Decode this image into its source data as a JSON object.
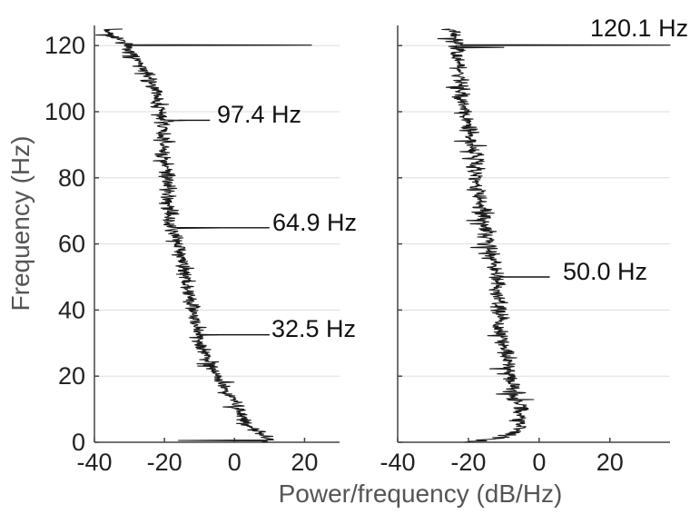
{
  "chart_data": {
    "type": "line",
    "orientation": "horizontal-psd",
    "ylabel": "Frequency (Hz)",
    "xlabel": "Power/frequency (dB/Hz)",
    "grid": true,
    "colors": {
      "trace": "#1a1a1a",
      "grid": "#dddddd",
      "axis": "#444444"
    },
    "panels": [
      {
        "name": "left",
        "xlim": [
          -40,
          30
        ],
        "ylim": [
          0,
          125
        ],
        "xticks": [
          "-40",
          "-20",
          "0",
          "20"
        ],
        "yticks": [
          "0",
          "20",
          "40",
          "60",
          "80",
          "100",
          "120"
        ],
        "trend": {
          "frequency": [
            0,
            1,
            2,
            5,
            10,
            15,
            20,
            25,
            30,
            35,
            40,
            45,
            50,
            55,
            60,
            65,
            70,
            75,
            80,
            85,
            90,
            95,
            100,
            105,
            110,
            115,
            118,
            120,
            122,
            124,
            125
          ],
          "power": [
            8,
            10,
            9,
            4,
            1,
            -2,
            -5,
            -8,
            -10,
            -11,
            -12,
            -13,
            -14,
            -15,
            -16,
            -18,
            -19,
            -19,
            -19,
            -20,
            -20,
            -20,
            -21,
            -22,
            -24,
            -27,
            -30,
            -31,
            -33,
            -36,
            -37
          ]
        },
        "noise_db": 1.6,
        "peaks": [
          {
            "frequency": 120.1,
            "power": 22
          },
          {
            "frequency": 97.4,
            "power": -14
          },
          {
            "frequency": 64.9,
            "power": -4
          },
          {
            "frequency": 32.5,
            "power": -5
          },
          {
            "frequency": 0.5,
            "power": -16
          }
        ],
        "annotations": [
          {
            "frequency": 97.4,
            "text": "97.4 Hz",
            "from_power": -16,
            "to_power": -7
          },
          {
            "frequency": 64.9,
            "text": "64.9 Hz",
            "from_power": -16,
            "to_power": 10
          },
          {
            "frequency": 32.5,
            "text": "32.5 Hz",
            "from_power": -11,
            "to_power": 10
          }
        ]
      },
      {
        "name": "right",
        "xlim": [
          -40,
          37
        ],
        "ylim": [
          0,
          125
        ],
        "xticks": [
          "-40",
          "-20",
          "0",
          "20"
        ],
        "yticks": [
          "0",
          "20",
          "40",
          "60",
          "80",
          "100",
          "120"
        ],
        "trend": {
          "frequency": [
            0,
            1,
            3,
            5,
            10,
            15,
            20,
            25,
            30,
            35,
            40,
            45,
            50,
            55,
            60,
            65,
            70,
            75,
            80,
            85,
            90,
            95,
            100,
            105,
            110,
            115,
            118,
            120,
            122,
            124,
            125
          ],
          "power": [
            -20,
            -13,
            -7,
            -5,
            -5,
            -7,
            -8,
            -9,
            -10,
            -11,
            -11,
            -12,
            -12,
            -13,
            -14,
            -15,
            -16,
            -17,
            -18,
            -18,
            -19,
            -20,
            -21,
            -22,
            -22,
            -23,
            -23,
            -23,
            -24,
            -24,
            -26
          ]
        },
        "noise_db": 1.6,
        "peaks": [
          {
            "frequency": 120.1,
            "power": 37
          },
          {
            "frequency": 119.5,
            "power": -10
          }
        ],
        "annotations": [
          {
            "frequency": 50.0,
            "text": "50.0 Hz",
            "from_power": -11,
            "to_power": 3
          },
          {
            "frequency": 120.1,
            "text": "120.1 Hz",
            "label_only": true
          }
        ]
      }
    ]
  }
}
